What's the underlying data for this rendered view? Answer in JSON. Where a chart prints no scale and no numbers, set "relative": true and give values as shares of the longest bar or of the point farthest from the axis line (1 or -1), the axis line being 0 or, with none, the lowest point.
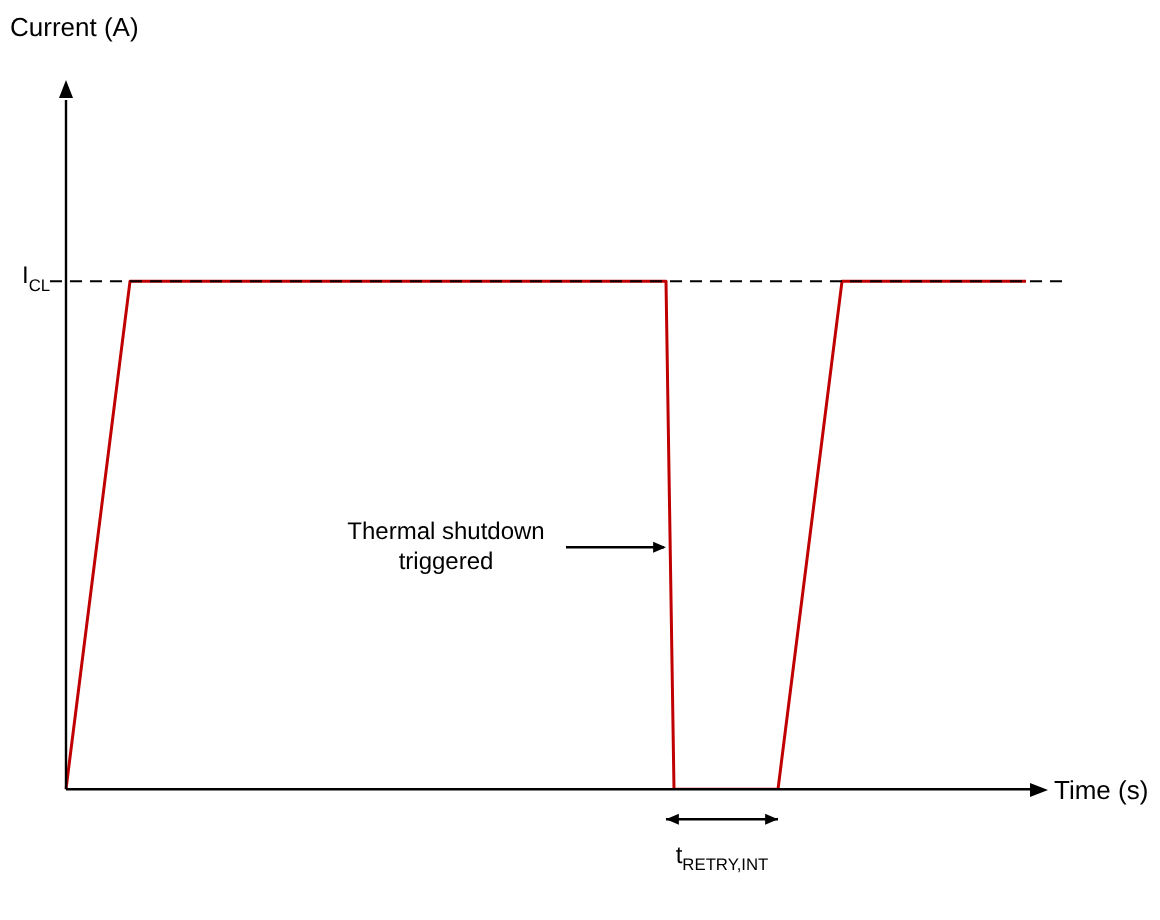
{
  "chart_data": {
    "type": "line",
    "relative": true,
    "xlabel": "Time (s)",
    "marker": "none",
    "line_style": "solid",
    "categories": [
      null,
      null,
      null,
      null,
      null,
      null,
      null,
      null,
      null,
      null,
      null,
      null,
      null,
      null,
      null,
      null,
      null,
      null,
      null,
      null,
      null,
      null,
      null,
      null,
      null,
      null,
      null,
      null,
      null,
      null,
      null,
      null,
      null,
      null,
      null,
      null,
      null,
      null,
      null,
      null,
      null,
      null,
      null,
      null,
      null,
      null,
      null,
      null,
      null,
      null,
      null,
      null,
      null,
      null,
      null,
      null,
      null,
      null,
      null,
      null,
      null,
      null,
      null,
      null,
      null,
      null,
      null,
      null,
      null,
      null,
      null,
      null,
      null,
      null,
      null,
      null,
      null,
      null,
      null,
      null,
      null,
      null,
      null,
      null,
      null,
      null,
      null,
      null,
      null,
      null,
      null,
      null,
      null,
      null,
      null,
      null,
      null,
      null,
      null,
      null,
      null,
      null,
      null,
      null,
      null,
      null,
      null,
      null,
      null,
      null,
      null,
      null,
      null,
      null,
      null,
      null,
      null,
      null,
      null,
      null,
      null
    ],
    "series": [
      {
        "color": "#c00000",
        "values": [
          0,
          0.125,
          0.25,
          0.375,
          0.5,
          0.625,
          0.75,
          0.875,
          1,
          1,
          1,
          1,
          1,
          1,
          1,
          1,
          1,
          1,
          1,
          1,
          1,
          1,
          1,
          1,
          1,
          1,
          1,
          1,
          1,
          1,
          1,
          1,
          1,
          1,
          1,
          1,
          1,
          1,
          1,
          1,
          1,
          1,
          1,
          1,
          1,
          1,
          1,
          1,
          1,
          1,
          1,
          1,
          1,
          1,
          1,
          1,
          1,
          1,
          1,
          1,
          1,
          1,
          1,
          1,
          1,
          1,
          1,
          1,
          1,
          1,
          1,
          1,
          1,
          1,
          1,
          1,
          0,
          0,
          0,
          0,
          0,
          0,
          0,
          0,
          0,
          0,
          0,
          0,
          0,
          0,
          0.125,
          0.25,
          0.375,
          0.5,
          0.625,
          0.75,
          0.875,
          1,
          1,
          1,
          1,
          1,
          1,
          1,
          1,
          1,
          1,
          1,
          1,
          1,
          1,
          1,
          1,
          1,
          1,
          1,
          1,
          1,
          1,
          1,
          1
        ]
      }
    ],
    "ref_lines": [
      {
        "axis": "y",
        "value": 1,
        "label": "I$_{CL}$",
        "line_style": "dashed",
        "color": "#000000"
      }
    ],
    "annotations": [
      "Thermal shutdown triggered",
      "t$_{RETRY,INT}$",
      "Current (A)"
    ]
  }
}
